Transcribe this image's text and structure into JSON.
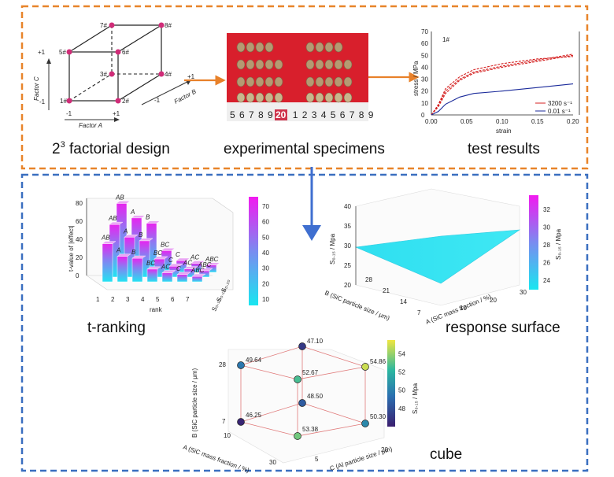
{
  "captions": {
    "factorial": "2",
    "factorial_sup": "3",
    "factorial_rest": " factorial design",
    "specimens": "experimental specimens",
    "results": "test results",
    "tranking": "t-ranking",
    "surface": "response surface",
    "cube": "cube"
  },
  "factorial_cube": {
    "vertices": [
      "1#",
      "2#",
      "3#",
      "4#",
      "5#",
      "6#",
      "7#",
      "8#"
    ],
    "factor_c": "Factor C",
    "factor_a": "Factor A",
    "factor_b": "Factor B",
    "plus": "+1",
    "minus": "-1"
  },
  "specimens": {
    "ruler": "5 6 7 8 9 20 1 2 3 4 5 6 7 8 9",
    "ruler_highlight": "20"
  },
  "test_results": {
    "chart_data": {
      "type": "line",
      "title": "1#",
      "xlabel": "strain",
      "ylabel": "stress / MPa",
      "xlim": [
        0,
        0.2
      ],
      "ylim": [
        0,
        70
      ],
      "xticks": [
        "0.00",
        "0.05",
        "0.10",
        "0.15",
        "0.20"
      ],
      "yticks": [
        "0",
        "10",
        "20",
        "30",
        "40",
        "50",
        "60",
        "70"
      ],
      "legend": [
        "3200 s⁻¹",
        "0.01 s⁻¹"
      ],
      "series": [
        {
          "name": "3200 s⁻¹",
          "color": "#d42020",
          "x": [
            0.0,
            0.01,
            0.02,
            0.04,
            0.06,
            0.1,
            0.15,
            0.2
          ],
          "y": [
            0,
            8,
            20,
            30,
            36,
            41,
            46,
            51
          ]
        },
        {
          "name": "3200 s⁻¹",
          "color": "#d42020",
          "x": [
            0.0,
            0.01,
            0.02,
            0.04,
            0.06,
            0.1,
            0.15,
            0.2
          ],
          "y": [
            0,
            9,
            22,
            32,
            38,
            43,
            47,
            49
          ]
        },
        {
          "name": "3200 s⁻¹",
          "color": "#d42020",
          "x": [
            0.0,
            0.01,
            0.02,
            0.04,
            0.06,
            0.1,
            0.15,
            0.2
          ],
          "y": [
            0,
            7,
            18,
            29,
            35,
            40,
            45,
            50
          ]
        },
        {
          "name": "0.01 s⁻¹",
          "color": "#1a2a9a",
          "x": [
            0.0,
            0.01,
            0.02,
            0.04,
            0.06,
            0.1,
            0.15,
            0.2
          ],
          "y": [
            0,
            3,
            9,
            15,
            18,
            20,
            23,
            26
          ]
        }
      ]
    }
  },
  "tranking": {
    "chart_data": {
      "type": "bar",
      "xlabel": "rank",
      "ylabel": "t-value of |effect|",
      "zlabels": [
        "S₀.₁₀",
        "S₀.₁₅",
        "S₀.₂₀"
      ],
      "xticks": [
        "1",
        "2",
        "3",
        "4",
        "5",
        "6",
        "7"
      ],
      "yticks": [
        "0",
        "20",
        "40",
        "60",
        "80"
      ],
      "colorbar_ticks": [
        "10",
        "20",
        "30",
        "40",
        "50",
        "60",
        "70"
      ],
      "series": [
        {
          "name": "S₀.₁₀",
          "labels": [
            "AB",
            "A",
            "B",
            "BC",
            "AC",
            "C",
            "ABC"
          ],
          "values": [
            42,
            28,
            26,
            14,
            10,
            8,
            6
          ]
        },
        {
          "name": "S₀.₁₅",
          "labels": [
            "AB",
            "A",
            "B",
            "BC",
            "C",
            "AC",
            "ABC"
          ],
          "values": [
            58,
            44,
            40,
            20,
            12,
            9,
            7
          ]
        },
        {
          "name": "S₀.₂₀",
          "labels": [
            "AB",
            "A",
            "B",
            "BC",
            "C",
            "AC",
            "ABC"
          ],
          "values": [
            76,
            60,
            54,
            24,
            13,
            10,
            8
          ]
        }
      ]
    }
  },
  "surface": {
    "chart_data": {
      "type": "area",
      "zlabel": "S₀.₁₅ / Mpa",
      "xlabel": "A (SiC mass fraction / %)",
      "ylabel": "B (SiC particle size / μm)",
      "zticks": [
        "20",
        "25",
        "30",
        "35",
        "40"
      ],
      "xticks": [
        "10",
        "20",
        "30"
      ],
      "yticks": [
        "7",
        "14",
        "21",
        "28"
      ],
      "colorbar_label": "S₀.₁₅ / Mpa",
      "colorbar_ticks": [
        "24",
        "26",
        "28",
        "30",
        "32"
      ]
    }
  },
  "cube_plot": {
    "chart_data": {
      "type": "scatter",
      "xlabel": "C (Al particle size / μm)",
      "ylabel": "B (SiC particle size / μm)",
      "zlabel": "A (SiC mass fraction / %)",
      "colorbar_label": "S₀.₁₅ / Mpa",
      "colorbar_ticks": [
        "48",
        "50",
        "52",
        "54"
      ],
      "yticks": [
        "7",
        "28"
      ],
      "xticks": [
        "5",
        "20"
      ],
      "ztick": [
        "10",
        "30"
      ],
      "points": [
        {
          "A": 10,
          "B": 28,
          "C": 5,
          "value": 49.64
        },
        {
          "A": 10,
          "B": 28,
          "C": 20,
          "value": 47.1
        },
        {
          "A": 30,
          "B": 28,
          "C": 5,
          "value": 52.67
        },
        {
          "A": 30,
          "B": 28,
          "C": 20,
          "value": 54.86
        },
        {
          "A": 10,
          "B": 7,
          "C": 5,
          "value": 46.25
        },
        {
          "A": 10,
          "B": 7,
          "C": 20,
          "value": 48.5
        },
        {
          "A": 30,
          "B": 7,
          "C": 5,
          "value": 53.38
        },
        {
          "A": 30,
          "B": 7,
          "C": 20,
          "value": 50.3
        }
      ],
      "labels": [
        "49.64",
        "47.10",
        "52.67",
        "54.86",
        "46.25",
        "48.50",
        "53.38",
        "50.30"
      ]
    }
  }
}
